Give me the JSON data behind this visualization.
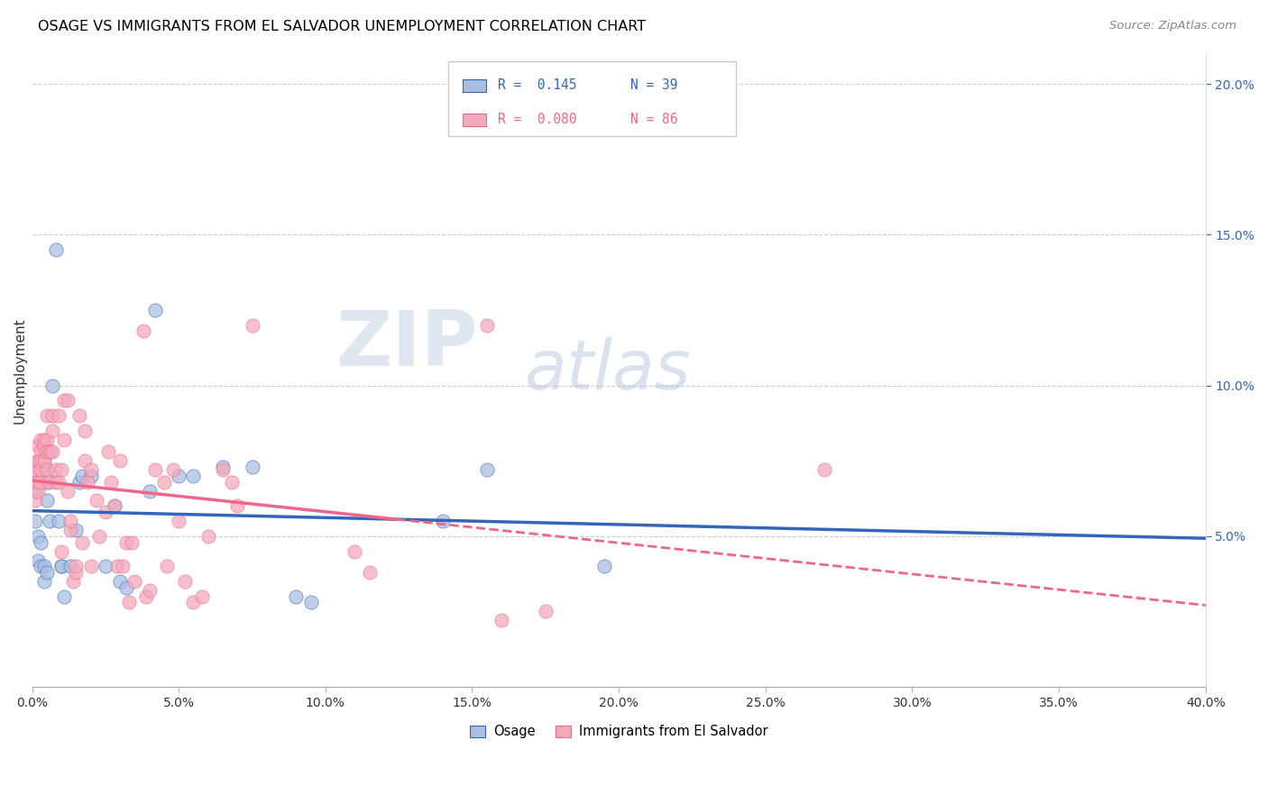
{
  "title": "OSAGE VS IMMIGRANTS FROM EL SALVADOR UNEMPLOYMENT CORRELATION CHART",
  "source": "Source: ZipAtlas.com",
  "ylabel": "Unemployment",
  "right_yticks": [
    "5.0%",
    "10.0%",
    "15.0%",
    "20.0%"
  ],
  "right_ytick_vals": [
    0.05,
    0.1,
    0.15,
    0.2
  ],
  "blue_color": "#AABFE0",
  "pink_color": "#F4AABC",
  "blue_line_color": "#3366BB",
  "pink_line_color": "#EE6688",
  "blue_scatter": [
    [
      0.001,
      0.065
    ],
    [
      0.001,
      0.055
    ],
    [
      0.002,
      0.05
    ],
    [
      0.002,
      0.042
    ],
    [
      0.003,
      0.04
    ],
    [
      0.003,
      0.048
    ],
    [
      0.004,
      0.04
    ],
    [
      0.004,
      0.035
    ],
    [
      0.005,
      0.038
    ],
    [
      0.005,
      0.062
    ],
    [
      0.005,
      0.072
    ],
    [
      0.005,
      0.068
    ],
    [
      0.006,
      0.055
    ],
    [
      0.007,
      0.1
    ],
    [
      0.008,
      0.145
    ],
    [
      0.009,
      0.055
    ],
    [
      0.01,
      0.04
    ],
    [
      0.01,
      0.04
    ],
    [
      0.011,
      0.03
    ],
    [
      0.013,
      0.04
    ],
    [
      0.015,
      0.052
    ],
    [
      0.016,
      0.068
    ],
    [
      0.017,
      0.07
    ],
    [
      0.02,
      0.07
    ],
    [
      0.025,
      0.04
    ],
    [
      0.028,
      0.06
    ],
    [
      0.03,
      0.035
    ],
    [
      0.032,
      0.033
    ],
    [
      0.04,
      0.065
    ],
    [
      0.042,
      0.125
    ],
    [
      0.05,
      0.07
    ],
    [
      0.055,
      0.07
    ],
    [
      0.065,
      0.073
    ],
    [
      0.075,
      0.073
    ],
    [
      0.09,
      0.03
    ],
    [
      0.095,
      0.028
    ],
    [
      0.14,
      0.055
    ],
    [
      0.155,
      0.072
    ],
    [
      0.195,
      0.04
    ]
  ],
  "pink_scatter": [
    [
      0.001,
      0.068
    ],
    [
      0.001,
      0.072
    ],
    [
      0.001,
      0.062
    ],
    [
      0.001,
      0.072
    ],
    [
      0.002,
      0.068
    ],
    [
      0.002,
      0.075
    ],
    [
      0.002,
      0.075
    ],
    [
      0.002,
      0.065
    ],
    [
      0.002,
      0.08
    ],
    [
      0.003,
      0.078
    ],
    [
      0.003,
      0.082
    ],
    [
      0.003,
      0.068
    ],
    [
      0.003,
      0.075
    ],
    [
      0.003,
      0.072
    ],
    [
      0.004,
      0.075
    ],
    [
      0.004,
      0.08
    ],
    [
      0.004,
      0.082
    ],
    [
      0.004,
      0.075
    ],
    [
      0.004,
      0.08
    ],
    [
      0.005,
      0.09
    ],
    [
      0.005,
      0.072
    ],
    [
      0.005,
      0.082
    ],
    [
      0.005,
      0.078
    ],
    [
      0.006,
      0.078
    ],
    [
      0.006,
      0.078
    ],
    [
      0.006,
      0.068
    ],
    [
      0.007,
      0.09
    ],
    [
      0.007,
      0.085
    ],
    [
      0.007,
      0.078
    ],
    [
      0.008,
      0.068
    ],
    [
      0.008,
      0.072
    ],
    [
      0.009,
      0.09
    ],
    [
      0.009,
      0.068
    ],
    [
      0.01,
      0.045
    ],
    [
      0.01,
      0.072
    ],
    [
      0.011,
      0.082
    ],
    [
      0.011,
      0.095
    ],
    [
      0.012,
      0.065
    ],
    [
      0.012,
      0.095
    ],
    [
      0.013,
      0.052
    ],
    [
      0.013,
      0.055
    ],
    [
      0.014,
      0.035
    ],
    [
      0.015,
      0.038
    ],
    [
      0.015,
      0.04
    ],
    [
      0.016,
      0.09
    ],
    [
      0.017,
      0.048
    ],
    [
      0.018,
      0.075
    ],
    [
      0.018,
      0.085
    ],
    [
      0.019,
      0.068
    ],
    [
      0.02,
      0.04
    ],
    [
      0.02,
      0.072
    ],
    [
      0.022,
      0.062
    ],
    [
      0.023,
      0.05
    ],
    [
      0.025,
      0.058
    ],
    [
      0.026,
      0.078
    ],
    [
      0.027,
      0.068
    ],
    [
      0.028,
      0.06
    ],
    [
      0.029,
      0.04
    ],
    [
      0.03,
      0.075
    ],
    [
      0.031,
      0.04
    ],
    [
      0.032,
      0.048
    ],
    [
      0.033,
      0.028
    ],
    [
      0.034,
      0.048
    ],
    [
      0.035,
      0.035
    ],
    [
      0.038,
      0.118
    ],
    [
      0.039,
      0.03
    ],
    [
      0.04,
      0.032
    ],
    [
      0.042,
      0.072
    ],
    [
      0.045,
      0.068
    ],
    [
      0.046,
      0.04
    ],
    [
      0.048,
      0.072
    ],
    [
      0.05,
      0.055
    ],
    [
      0.052,
      0.035
    ],
    [
      0.055,
      0.028
    ],
    [
      0.058,
      0.03
    ],
    [
      0.06,
      0.05
    ],
    [
      0.065,
      0.072
    ],
    [
      0.068,
      0.068
    ],
    [
      0.07,
      0.06
    ],
    [
      0.075,
      0.12
    ],
    [
      0.11,
      0.045
    ],
    [
      0.115,
      0.038
    ],
    [
      0.155,
      0.12
    ],
    [
      0.16,
      0.022
    ],
    [
      0.175,
      0.025
    ],
    [
      0.27,
      0.072
    ]
  ],
  "xlim": [
    0.0,
    0.4
  ],
  "ylim": [
    0.0,
    0.21
  ],
  "watermark_zip": "ZIP",
  "watermark_atlas": "atlas",
  "watermark_color_zip": "#C8D8E8",
  "watermark_color_atlas": "#B8CCE0"
}
